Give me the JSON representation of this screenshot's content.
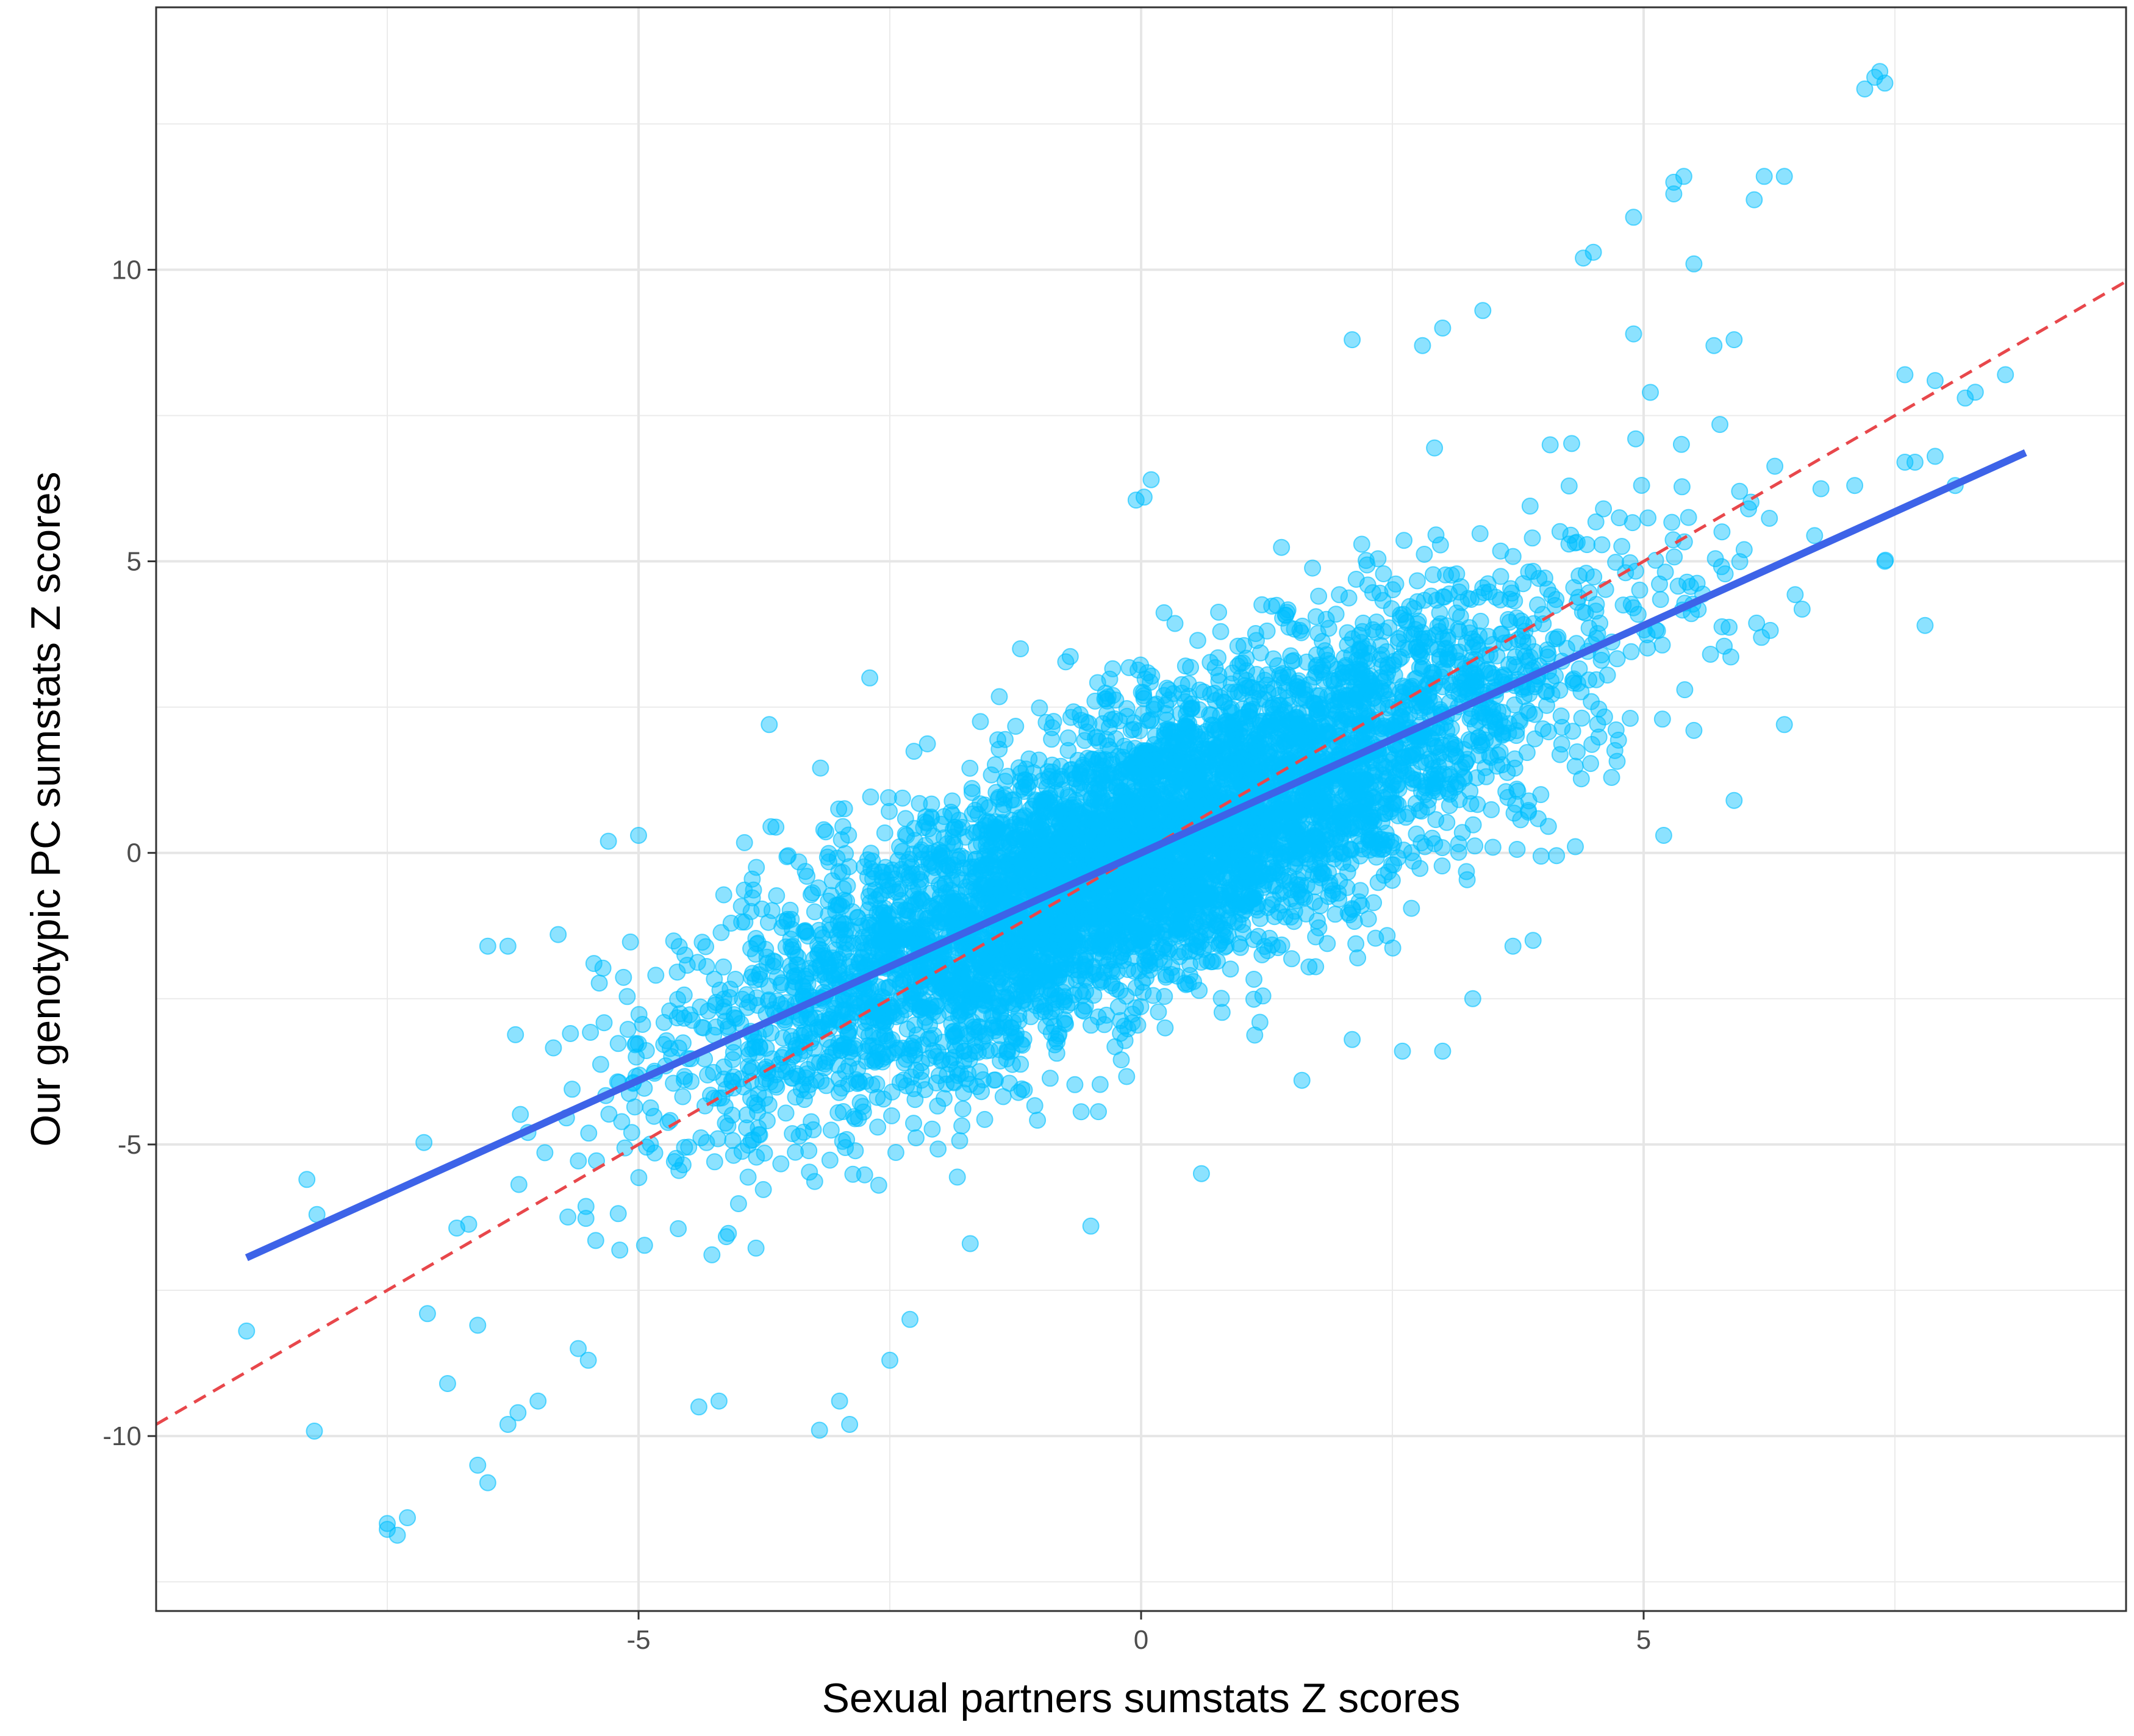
{
  "chart_data": {
    "type": "scatter",
    "title": "",
    "xlabel": "Sexual partners sumstats Z scores",
    "ylabel": "Our genotypic PC sumstats Z scores",
    "xlim": [
      -9.8,
      9.8
    ],
    "ylim": [
      -13,
      14.5
    ],
    "x_ticks": [
      -5,
      0,
      5
    ],
    "x_tick_labels": [
      "-5",
      "0",
      "5"
    ],
    "y_ticks": [
      -10,
      -5,
      0,
      5,
      10
    ],
    "y_tick_labels": [
      "-10",
      "-5",
      "0",
      "5",
      "10"
    ],
    "grid": true,
    "legend": "none",
    "point_color": "#00BFFF",
    "point_opacity": 0.45,
    "main_cloud": {
      "description_note": "dense cloud of SNP z-score pairs",
      "n_points": 6000,
      "x_mean": 0,
      "x_sd": 2.1,
      "slope": 0.78,
      "residual_sd": 1.25,
      "x_range": [
        -8.5,
        8.5
      ]
    },
    "outlier_points": [
      {
        "x": 7.3,
        "y": 13.3
      },
      {
        "x": 7.4,
        "y": 13.2
      },
      {
        "x": 7.2,
        "y": 13.1
      },
      {
        "x": 7.35,
        "y": 13.4
      },
      {
        "x": 5.3,
        "y": 11.5
      },
      {
        "x": 5.4,
        "y": 11.6
      },
      {
        "x": 5.3,
        "y": 11.3
      },
      {
        "x": 6.2,
        "y": 11.6
      },
      {
        "x": 6.4,
        "y": 11.6
      },
      {
        "x": 6.1,
        "y": 11.2
      },
      {
        "x": 4.9,
        "y": 10.9
      },
      {
        "x": 5.5,
        "y": 10.1
      },
      {
        "x": 4.5,
        "y": 10.3
      },
      {
        "x": 4.4,
        "y": 10.2
      },
      {
        "x": 8.3,
        "y": 7.9
      },
      {
        "x": 8.6,
        "y": 8.2
      },
      {
        "x": 7.9,
        "y": 8.1
      },
      {
        "x": 7.6,
        "y": 8.2
      },
      {
        "x": 8.2,
        "y": 7.8
      },
      {
        "x": 7.7,
        "y": 6.7
      },
      {
        "x": 7.9,
        "y": 6.8
      },
      {
        "x": 7.6,
        "y": 6.7
      },
      {
        "x": 8.1,
        "y": 6.3
      },
      {
        "x": 7.8,
        "y": 3.9
      },
      {
        "x": 7.4,
        "y": 5.0
      },
      {
        "x": 7.1,
        "y": 6.3
      },
      {
        "x": 0.03,
        "y": 6.1
      },
      {
        "x": 0.1,
        "y": 6.4
      },
      {
        "x": -0.05,
        "y": 6.05
      },
      {
        "x": -7.5,
        "y": -11.5
      },
      {
        "x": -7.4,
        "y": -11.7
      },
      {
        "x": -7.3,
        "y": -11.4
      },
      {
        "x": -7.5,
        "y": -11.6
      },
      {
        "x": -8.9,
        "y": -8.2
      },
      {
        "x": -8.2,
        "y": -6.2
      },
      {
        "x": -8.3,
        "y": -5.6
      },
      {
        "x": -6.5,
        "y": -10.8
      },
      {
        "x": -6.6,
        "y": -10.5
      },
      {
        "x": -6.3,
        "y": -9.8
      },
      {
        "x": -6.2,
        "y": -9.6
      },
      {
        "x": -6.0,
        "y": -9.4
      },
      {
        "x": -6.9,
        "y": -9.1
      },
      {
        "x": -3.2,
        "y": -9.9
      },
      {
        "x": -2.9,
        "y": -9.8
      },
      {
        "x": -3.0,
        "y": -9.4
      },
      {
        "x": -4.4,
        "y": -9.5
      },
      {
        "x": -4.2,
        "y": -9.4
      },
      {
        "x": -2.5,
        "y": -8.7
      },
      {
        "x": -2.3,
        "y": -8.0
      },
      {
        "x": -5.5,
        "y": -8.7
      },
      {
        "x": -5.6,
        "y": -8.5
      },
      {
        "x": -7.1,
        "y": -7.9
      },
      {
        "x": -6.6,
        "y": -8.1
      },
      {
        "x": -6.3,
        "y": -1.6
      },
      {
        "x": -6.5,
        "y": -1.6
      },
      {
        "x": -5.8,
        "y": -1.4
      },
      {
        "x": -5.0,
        "y": 0.3
      },
      {
        "x": -5.3,
        "y": 0.2
      },
      {
        "x": -3.7,
        "y": 2.2
      },
      {
        "x": -2.7,
        "y": 3.0
      },
      {
        "x": -1.2,
        "y": 3.5
      },
      {
        "x": 2.1,
        "y": 8.8
      },
      {
        "x": 2.8,
        "y": 8.7
      },
      {
        "x": 3.0,
        "y": 9.0
      },
      {
        "x": 3.4,
        "y": 9.3
      },
      {
        "x": 4.6,
        "y": 5.9
      },
      {
        "x": 4.9,
        "y": 8.9
      },
      {
        "x": 5.7,
        "y": 8.7
      },
      {
        "x": 5.9,
        "y": 8.8
      },
      {
        "x": 6.0,
        "y": 5.2
      },
      {
        "x": 5.5,
        "y": 2.1
      },
      {
        "x": 5.9,
        "y": 0.9
      },
      {
        "x": 6.4,
        "y": 2.2
      },
      {
        "x": 5.2,
        "y": 0.3
      },
      {
        "x": -1.7,
        "y": -6.7
      },
      {
        "x": -0.5,
        "y": -6.4
      },
      {
        "x": 0.6,
        "y": -5.5
      },
      {
        "x": 1.6,
        "y": -3.9
      },
      {
        "x": 2.6,
        "y": -3.4
      },
      {
        "x": 3.0,
        "y": -3.4
      },
      {
        "x": 3.3,
        "y": -2.5
      },
      {
        "x": 3.9,
        "y": -1.5
      },
      {
        "x": 3.7,
        "y": -1.6
      },
      {
        "x": 2.1,
        "y": -3.2
      }
    ],
    "reference_line": {
      "name": "y = x",
      "slope": 1.0,
      "intercept": 0.0,
      "color": "#E8474B",
      "dashed": true
    },
    "regression_line": {
      "slope": 0.78,
      "intercept": 0.0,
      "x_range": [
        -8.9,
        8.8
      ],
      "color": "#3D63E8"
    }
  }
}
